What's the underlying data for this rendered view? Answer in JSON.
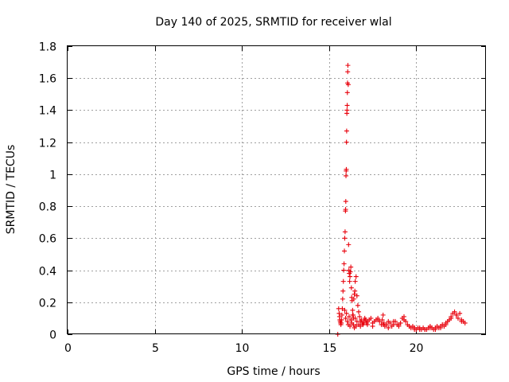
{
  "chart_data": {
    "type": "scatter",
    "title": "Day 140 of 2025, SRMTID for receiver wlal",
    "xlabel": "GPS time / hours",
    "ylabel": "SRMTID / TECUs",
    "xlim": [
      0,
      24
    ],
    "ylim": [
      0,
      1.8
    ],
    "xticks": [
      0,
      5,
      10,
      15,
      20
    ],
    "yticks": [
      0,
      0.2,
      0.4,
      0.6,
      0.8,
      1,
      1.2,
      1.4,
      1.6,
      1.8
    ],
    "xtick_labels": [
      "0",
      "5",
      "10",
      "15",
      "20"
    ],
    "ytick_labels": [
      "0",
      "0.2",
      "0.4",
      "0.6",
      "0.8",
      "1",
      "1.2",
      "1.4",
      "1.6",
      "1.8"
    ],
    "grid": true,
    "marker": "+",
    "color": "#e8000b",
    "series": [
      {
        "name": "SRMTID",
        "x": [
          15.5,
          15.55,
          15.58,
          15.6,
          15.62,
          15.64,
          15.66,
          15.68,
          15.7,
          15.72,
          15.74,
          15.76,
          15.78,
          15.8,
          15.82,
          15.84,
          15.86,
          15.88,
          15.9,
          15.92,
          15.94,
          15.95,
          15.96,
          15.97,
          15.98,
          15.99,
          16.0,
          16.01,
          16.02,
          16.03,
          16.04,
          16.05,
          16.06,
          16.07,
          16.08,
          16.1,
          16.12,
          16.14,
          16.16,
          16.18,
          16.2,
          16.22,
          16.25,
          16.28,
          16.3,
          16.32,
          16.35,
          16.38,
          16.4,
          16.42,
          16.45,
          16.48,
          16.5,
          16.55,
          16.6,
          16.65,
          16.7,
          16.75,
          16.8,
          16.85,
          16.9,
          16.95,
          17.0,
          17.05,
          17.1,
          17.15,
          17.2,
          17.3,
          17.4,
          17.5,
          17.6,
          17.7,
          17.8,
          17.9,
          18.0,
          18.05,
          18.1,
          18.15,
          18.2,
          18.3,
          18.4,
          18.5,
          18.6,
          18.7,
          18.8,
          18.9,
          19.0,
          19.1,
          19.2,
          19.3,
          19.4,
          19.5,
          19.6,
          19.7,
          19.8,
          19.9,
          20.0,
          20.1,
          20.2,
          20.3,
          20.4,
          20.5,
          20.6,
          20.7,
          20.8,
          20.9,
          21.0,
          21.1,
          21.2,
          21.3,
          21.4,
          21.5,
          21.6,
          21.7,
          21.8,
          21.9,
          22.0,
          22.1,
          22.2,
          22.3,
          22.4,
          22.5,
          22.6,
          22.7,
          22.8,
          15.9,
          15.95,
          16.0,
          16.05,
          16.1,
          16.15,
          16.2,
          16.25,
          16.3,
          16.35,
          16.4,
          16.45,
          16.5,
          16.55,
          16.6,
          16.7,
          16.8,
          17.0,
          17.2,
          17.5,
          17.8,
          18.1,
          18.4,
          18.7,
          19.0,
          19.3,
          19.6,
          19.9,
          20.2,
          20.5,
          20.8,
          21.1,
          21.4,
          21.7,
          22.0,
          22.3,
          22.6
        ],
        "y": [
          0.0,
          0.16,
          0.13,
          0.11,
          0.09,
          0.08,
          0.07,
          0.06,
          0.07,
          0.09,
          0.12,
          0.16,
          0.22,
          0.27,
          0.33,
          0.4,
          0.44,
          0.52,
          0.6,
          0.64,
          0.77,
          0.78,
          0.83,
          0.99,
          1.02,
          1.03,
          1.2,
          1.27,
          1.38,
          1.4,
          1.43,
          1.51,
          1.57,
          1.64,
          1.68,
          1.56,
          0.56,
          0.4,
          0.38,
          0.33,
          0.36,
          0.39,
          0.42,
          0.29,
          0.23,
          0.21,
          0.15,
          0.12,
          0.1,
          0.22,
          0.25,
          0.27,
          0.33,
          0.36,
          0.24,
          0.18,
          0.14,
          0.11,
          0.08,
          0.09,
          0.07,
          0.06,
          0.08,
          0.1,
          0.09,
          0.07,
          0.08,
          0.09,
          0.1,
          0.07,
          0.08,
          0.09,
          0.1,
          0.08,
          0.06,
          0.09,
          0.12,
          0.07,
          0.05,
          0.06,
          0.08,
          0.07,
          0.05,
          0.06,
          0.08,
          0.06,
          0.05,
          0.07,
          0.1,
          0.11,
          0.08,
          0.06,
          0.05,
          0.04,
          0.05,
          0.04,
          0.03,
          0.04,
          0.03,
          0.03,
          0.04,
          0.03,
          0.03,
          0.04,
          0.05,
          0.04,
          0.03,
          0.04,
          0.05,
          0.04,
          0.05,
          0.06,
          0.05,
          0.07,
          0.08,
          0.09,
          0.11,
          0.13,
          0.14,
          0.12,
          0.1,
          0.13,
          0.09,
          0.08,
          0.07,
          0.15,
          0.1,
          0.13,
          0.08,
          0.06,
          0.11,
          0.05,
          0.09,
          0.07,
          0.12,
          0.06,
          0.04,
          0.1,
          0.05,
          0.08,
          0.06,
          0.05,
          0.07,
          0.06,
          0.05,
          0.09,
          0.06,
          0.04,
          0.08,
          0.06,
          0.09,
          0.05,
          0.03,
          0.04,
          0.03,
          0.04,
          0.03,
          0.04,
          0.06,
          0.1,
          0.12,
          0.08
        ]
      }
    ]
  }
}
